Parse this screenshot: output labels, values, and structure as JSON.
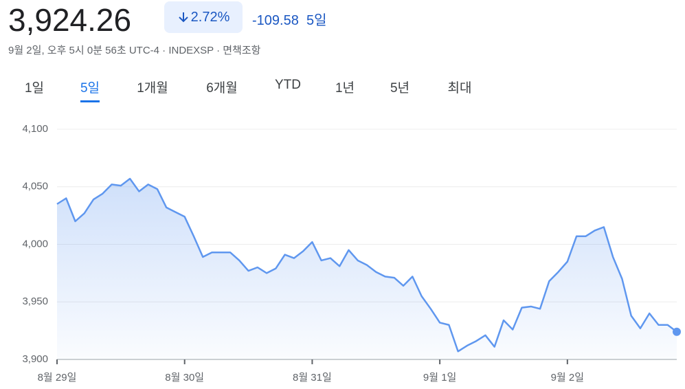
{
  "header": {
    "price": "3,924.26",
    "change_percent": "2.72%",
    "change": "-109.58",
    "period": "5일",
    "subtitle": "9월 2일, 오후 5시 0분 56초 UTC-4 · INDEXSP · 면책조항"
  },
  "tabs": {
    "items": [
      "1일",
      "5일",
      "1개월",
      "6개월",
      "YTD",
      "1년",
      "5년",
      "최대"
    ],
    "selected": 1
  },
  "chart_data": {
    "type": "area",
    "color": "#5f97ef",
    "x": [
      0,
      1,
      2,
      3,
      4,
      5,
      6,
      7,
      8,
      9,
      10,
      11,
      12,
      13,
      14,
      15,
      16,
      17,
      18,
      19,
      20,
      21,
      22,
      23,
      24,
      25,
      26,
      27,
      28,
      29,
      30,
      31,
      32,
      33,
      34,
      35,
      36,
      37,
      38,
      39,
      40,
      41,
      42,
      43,
      44,
      45,
      46,
      47,
      48,
      49,
      50,
      51,
      52,
      53,
      54,
      55,
      56,
      57,
      58,
      59,
      60,
      61,
      62,
      63,
      64,
      65,
      66,
      67,
      68
    ],
    "values": [
      4035,
      4040,
      4020,
      4027,
      4039,
      4044,
      4052,
      4051,
      4057,
      4046,
      4052,
      4048,
      4032,
      4028,
      4024,
      4007,
      3989,
      3993,
      3993,
      3993,
      3986,
      3977,
      3980,
      3975,
      3979,
      3991,
      3988,
      3994,
      4002,
      3986,
      3988,
      3981,
      3995,
      3986,
      3982,
      3976,
      3972,
      3971,
      3964,
      3972,
      3955,
      3944,
      3932,
      3930,
      3907,
      3912,
      3916,
      3921,
      3911,
      3934,
      3926,
      3945,
      3946,
      3944,
      3968,
      3976,
      3985,
      4007,
      4007,
      4012,
      4015,
      3989,
      3970,
      3938,
      3927,
      3940,
      3930,
      3930,
      3924
    ],
    "xlim": [
      0,
      68
    ],
    "xticks": [
      {
        "value": 0,
        "label": "8월 29일"
      },
      {
        "value": 14,
        "label": "8월 30일"
      },
      {
        "value": 28,
        "label": "8월 31일"
      },
      {
        "value": 42,
        "label": "9월 1일"
      },
      {
        "value": 56,
        "label": "9월 2일"
      }
    ],
    "ylim": [
      3900,
      4100
    ],
    "yticks": [
      {
        "value": 3900,
        "label": "3,900"
      },
      {
        "value": 3950,
        "label": "3,950"
      },
      {
        "value": 4000,
        "label": "4,000"
      },
      {
        "value": 4050,
        "label": "4,050"
      },
      {
        "value": 4100,
        "label": "4,100"
      }
    ],
    "grid": true
  }
}
